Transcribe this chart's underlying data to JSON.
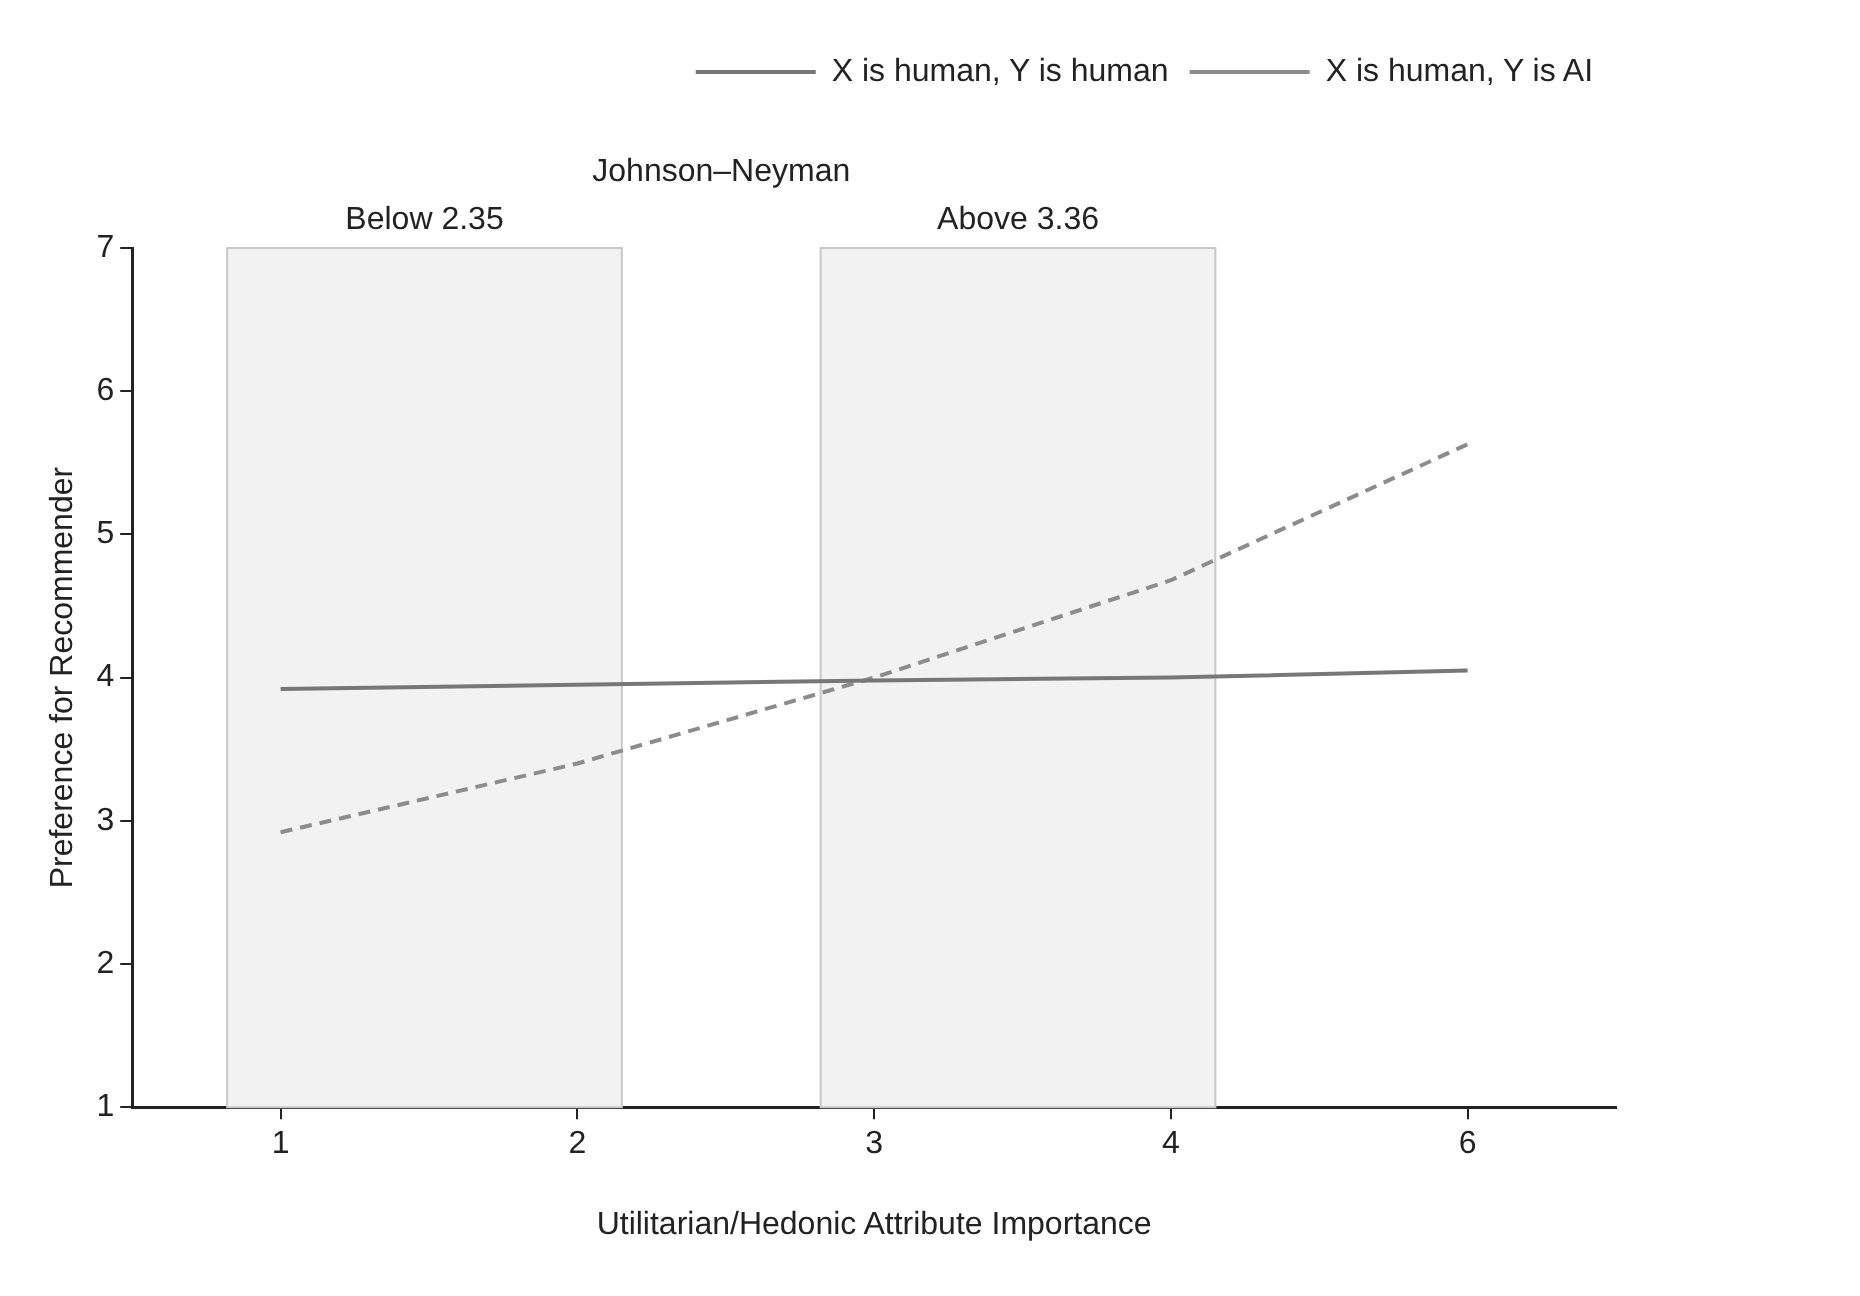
{
  "chart_data": {
    "type": "line",
    "xlabel": "Utilitarian/Hedonic Attribute Importance",
    "ylabel": "Preference for Recommender",
    "annotations": [
      "Johnson–Neyman"
    ],
    "categories": [
      "1",
      "2",
      "3",
      "4",
      "6"
    ],
    "ylim": [
      1,
      7
    ],
    "yticks": [
      1,
      2,
      3,
      4,
      5,
      6,
      7
    ],
    "series": [
      {
        "name": "X is human, Y is human",
        "color": "#777777",
        "line_style": "solid",
        "values": [
          3.92,
          3.95,
          3.98,
          4.0,
          4.05
        ]
      },
      {
        "name": "X is human, Y is AI",
        "color": "#8c8c8c",
        "line_style": "dashed",
        "values": [
          2.92,
          3.4,
          4.0,
          4.68,
          5.63
        ]
      }
    ],
    "bands": [
      {
        "axis": "x",
        "from": "1",
        "to": "2",
        "label": "Below 2.35",
        "color": "#f2f2f2"
      },
      {
        "axis": "x",
        "from": "3",
        "to": "4",
        "label": "Above 3.36",
        "color": "#f2f2f2"
      }
    ],
    "grid": false,
    "legend": "top right",
    "marker": "none"
  }
}
